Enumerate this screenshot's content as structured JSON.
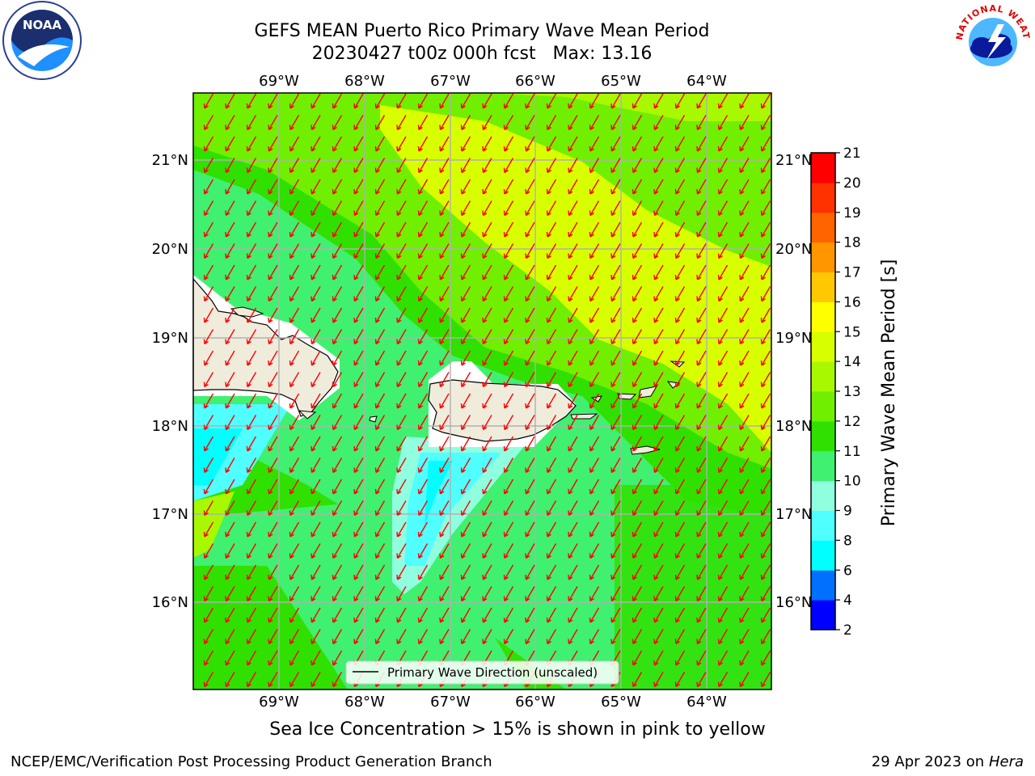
{
  "title": {
    "line1": "GEFS MEAN Puerto Rico Primary Wave Mean Period",
    "line2": "20230427 t00z 000h fcst   Max: 13.16"
  },
  "logos": {
    "noaa": {
      "name": "noaa-logo",
      "text": "NOAA"
    },
    "nws": {
      "name": "national-weather-service-logo",
      "text": "NATIONAL WEATHER SERVICE"
    }
  },
  "map": {
    "lon_labels": [
      "69°W",
      "68°W",
      "67°W",
      "66°W",
      "65°W",
      "64°W"
    ],
    "lat_labels": [
      "21°N",
      "20°N",
      "19°N",
      "18°N",
      "17°N",
      "16°N"
    ],
    "legend_label": "Primary Wave Direction (unscaled)",
    "arrow_color": "#ff0000",
    "land_color": "#f0ecdc"
  },
  "colorbar": {
    "label": "Primary Wave Mean Period [s]",
    "ticks": [
      "2",
      "4",
      "6",
      "8",
      "9",
      "10",
      "11",
      "12",
      "13",
      "14",
      "15",
      "16",
      "17",
      "18",
      "19",
      "20",
      "21"
    ],
    "colors": [
      "#0000ff",
      "#0070ff",
      "#00ffff",
      "#50ffff",
      "#90ffe0",
      "#40f070",
      "#30e000",
      "#70ef00",
      "#a8f800",
      "#d8ff00",
      "#ffff00",
      "#ffc800",
      "#ff9600",
      "#ff6400",
      "#ff3200",
      "#ff0000"
    ]
  },
  "footnote": "Sea Ice Concentration > 15% is shown in pink to yellow",
  "credit_left": "NCEP/EMC/Verification Post Processing Product Generation Branch",
  "credit_right": {
    "date": "29 Apr 2023 on ",
    "host": "Hera"
  }
}
